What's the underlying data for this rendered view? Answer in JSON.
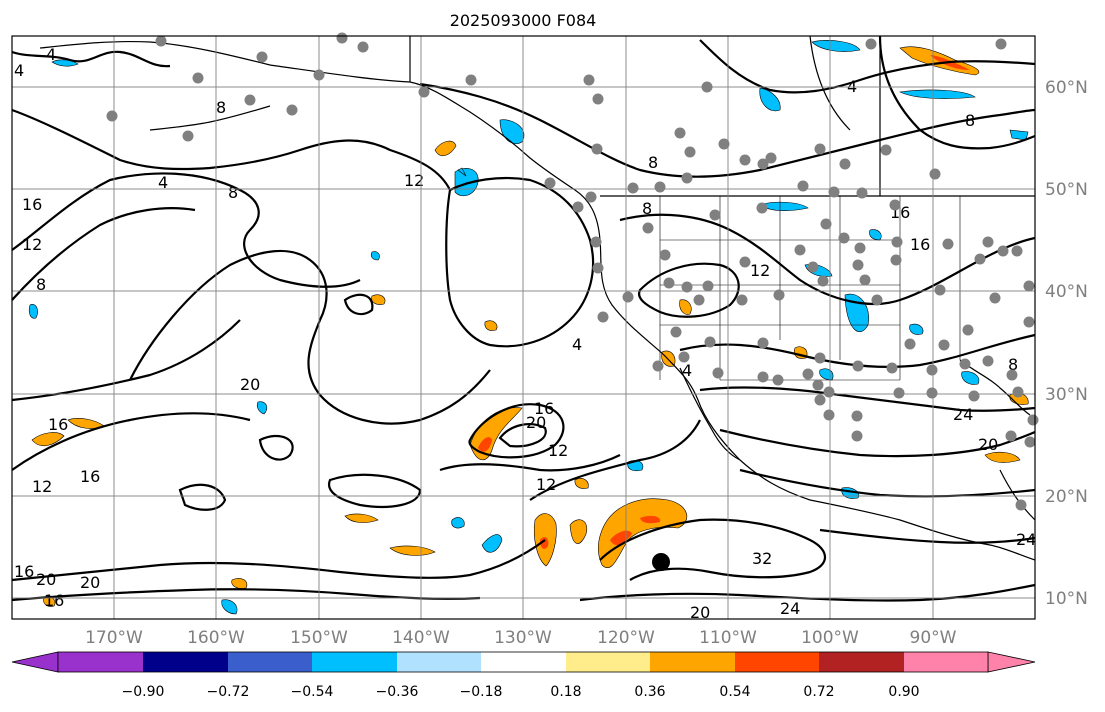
{
  "title": "2025093000 F084",
  "lat_labels": [
    "60°N",
    "50°N",
    "40°N",
    "30°N",
    "20°N",
    "10°N"
  ],
  "lon_labels": [
    "170°W",
    "160°W",
    "150°W",
    "140°W",
    "130°W",
    "120°W",
    "110°W",
    "100°W",
    "90°W"
  ],
  "colorbar": {
    "ticks": [
      "−0.90",
      "−0.72",
      "−0.54",
      "−0.36",
      "−0.18",
      "0.18",
      "0.36",
      "0.54",
      "0.72",
      "0.90"
    ],
    "colors": [
      "#9932cc",
      "#00008b",
      "#3a5fcd",
      "#00bfff",
      "#b0e2ff",
      "#ffffff",
      "#ffec8b",
      "#ffa500",
      "#ff4500",
      "#b22222",
      "#ff82ab"
    ]
  },
  "contour_labels": [
    "4",
    "4",
    "8",
    "4",
    "8",
    "16",
    "12",
    "8",
    "12",
    "4",
    "8",
    "8",
    "16",
    "12",
    "4",
    "8",
    "20",
    "16",
    "16",
    "12",
    "16",
    "20",
    "12",
    "12",
    "20",
    "20",
    "16",
    "16",
    "32",
    "24",
    "20",
    "24",
    "20",
    "8",
    "16",
    "24",
    "4"
  ],
  "colors": {
    "frame": "#000000",
    "grid": "#808080",
    "station": "#808080",
    "negative_shade": "#00bfff",
    "positive_shade": "#ffa500",
    "strong_positive_shade": "#ff4500"
  }
}
